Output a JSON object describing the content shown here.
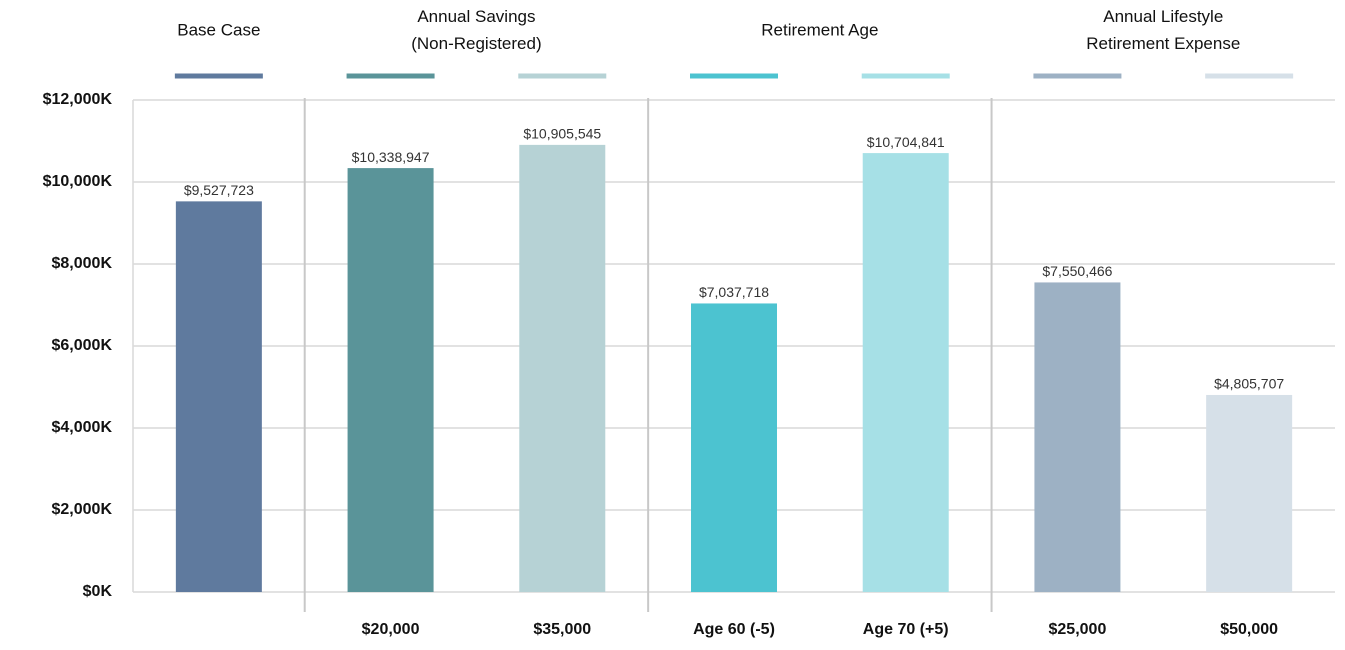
{
  "chart_data": {
    "type": "bar",
    "ylim": [
      0,
      12000
    ],
    "yticks": [
      {
        "value": 0,
        "label": "$0K"
      },
      {
        "value": 2000,
        "label": "$2,000K"
      },
      {
        "value": 4000,
        "label": "$4,000K"
      },
      {
        "value": 6000,
        "label": "$6,000K"
      },
      {
        "value": 8000,
        "label": "$8,000K"
      },
      {
        "value": 10000,
        "label": "$10,000K"
      },
      {
        "value": 12000,
        "label": "$12,000K"
      }
    ],
    "grid": true,
    "groups": [
      {
        "label": [
          "Base Case"
        ],
        "categories": [
          null
        ],
        "values": [
          9527.723
        ],
        "value_labels": [
          "$9,527,723"
        ],
        "colors": [
          "#5f7a9e"
        ]
      },
      {
        "label": [
          "Annual Savings",
          "(Non-Registered)"
        ],
        "categories": [
          "$20,000",
          "$35,000"
        ],
        "values": [
          10338.947,
          10905.545
        ],
        "value_labels": [
          "$10,338,947",
          "$10,905,545"
        ],
        "colors": [
          "#5a9499",
          "#b6d2d5"
        ]
      },
      {
        "label": [
          "Retirement Age"
        ],
        "categories": [
          "Age 60 (-5)",
          "Age 70 (+5)"
        ],
        "values": [
          7037.718,
          10704.841
        ],
        "value_labels": [
          "$7,037,718",
          "$10,704,841"
        ],
        "colors": [
          "#4cc3d0",
          "#a6e0e6"
        ]
      },
      {
        "label": [
          "Annual Lifestyle",
          "Retirement Expense"
        ],
        "categories": [
          "$25,000",
          "$50,000"
        ],
        "values": [
          7550.466,
          4805.707
        ],
        "value_labels": [
          "$7,550,466",
          "$4,805,707"
        ],
        "colors": [
          "#9db1c4",
          "#d6e0e8"
        ]
      }
    ]
  }
}
